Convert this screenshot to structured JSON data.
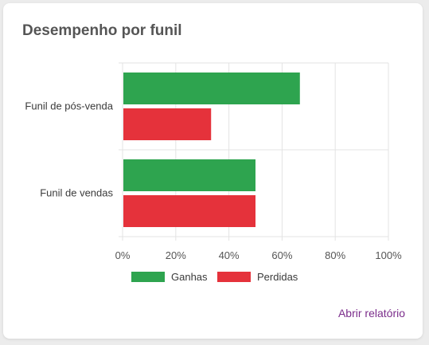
{
  "card": {
    "title": "Desempenho por funil",
    "link_label": "Abrir relatório"
  },
  "colors": {
    "won": "#2ea44f",
    "lost": "#e5323b",
    "grid": "#e3e3e3",
    "text": "#555555",
    "link": "#7b2d8b"
  },
  "chart_data": {
    "type": "bar",
    "orientation": "horizontal",
    "categories": [
      "Funil de pós-venda",
      "Funil de vendas"
    ],
    "series": [
      {
        "name": "Ganhas",
        "values": [
          66.7,
          50
        ]
      },
      {
        "name": "Perdidas",
        "values": [
          33.3,
          50
        ]
      }
    ],
    "xlim": [
      0,
      100
    ],
    "xticks": [
      "0%",
      "20%",
      "40%",
      "60%",
      "80%",
      "100%"
    ],
    "grid": true,
    "legend": "bottom"
  }
}
